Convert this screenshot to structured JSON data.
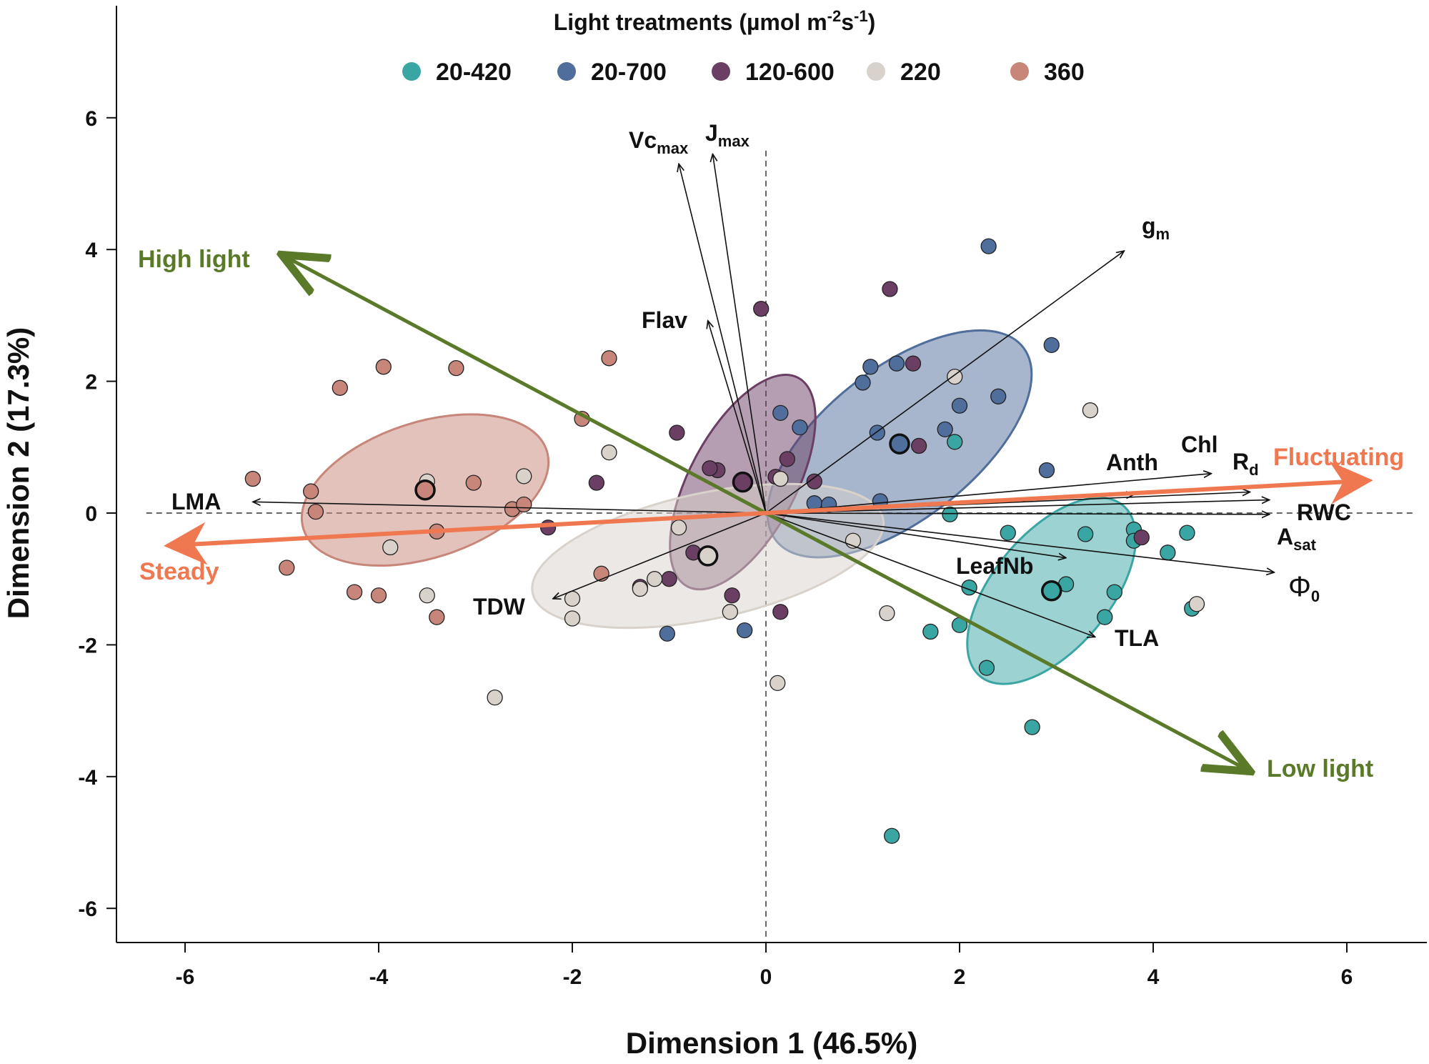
{
  "chart_data": {
    "type": "scatter",
    "subtype": "PCA biplot",
    "xlabel": "Dimension 1 (46.5%)",
    "ylabel": "Dimension 2 (17.3%)",
    "xlim": [
      -6.7,
      6.7
    ],
    "ylim": [
      -6.5,
      7.5
    ],
    "xticks": [
      -6,
      -4,
      -2,
      0,
      2,
      4,
      6
    ],
    "yticks": [
      -6,
      -4,
      -2,
      0,
      2,
      4,
      6
    ],
    "grid": false,
    "legend": {
      "title_main": "Light treatments (µmol m",
      "title_sup1": "-2",
      "title_mid": "s",
      "title_sup2": "-1",
      "title_end": ")",
      "placement": "top-center"
    },
    "series": [
      {
        "name": "20-420",
        "color": "#3aa6a4",
        "centroid": [
          2.95,
          -1.18
        ],
        "ellipse": {
          "rx": 1.15,
          "ry": 0.6,
          "angle": 50
        },
        "points": [
          [
            3.1,
            -1.08
          ],
          [
            2.1,
            -1.13
          ],
          [
            1.7,
            -1.8
          ],
          [
            2.0,
            -1.7
          ],
          [
            2.28,
            -2.35
          ],
          [
            2.75,
            -3.25
          ],
          [
            1.3,
            -4.9
          ],
          [
            3.3,
            -0.32
          ],
          [
            3.6,
            -1.2
          ],
          [
            3.8,
            -0.25
          ],
          [
            3.8,
            -0.42
          ],
          [
            4.15,
            -0.6
          ],
          [
            4.35,
            -0.3
          ],
          [
            4.4,
            -1.45
          ],
          [
            3.5,
            -1.58
          ],
          [
            2.5,
            -0.3
          ],
          [
            1.95,
            1.08
          ],
          [
            1.9,
            -0.02
          ]
        ]
      },
      {
        "name": "20-700",
        "color": "#4f6e9c",
        "centroid": [
          1.38,
          1.05
        ],
        "ellipse": {
          "rx": 1.62,
          "ry": 0.78,
          "angle": 38
        },
        "points": [
          [
            2.3,
            4.05
          ],
          [
            2.95,
            2.55
          ],
          [
            1.08,
            2.22
          ],
          [
            1.35,
            2.27
          ],
          [
            1.0,
            1.98
          ],
          [
            2.4,
            1.77
          ],
          [
            0.15,
            1.52
          ],
          [
            0.35,
            1.3
          ],
          [
            1.15,
            1.22
          ],
          [
            1.85,
            1.27
          ],
          [
            2.0,
            1.63
          ],
          [
            2.9,
            0.65
          ],
          [
            0.5,
            0.15
          ],
          [
            0.65,
            0.13
          ],
          [
            1.18,
            0.18
          ],
          [
            -1.02,
            -1.83
          ],
          [
            -0.22,
            -1.78
          ]
        ]
      },
      {
        "name": "120-600",
        "color": "#6b3e63",
        "centroid": [
          -0.24,
          0.47
        ],
        "ellipse": {
          "rx": 1.22,
          "ry": 0.55,
          "angle": 62
        },
        "points": [
          [
            1.28,
            3.4
          ],
          [
            -0.05,
            3.1
          ],
          [
            1.52,
            2.27
          ],
          [
            1.58,
            1.02
          ],
          [
            -0.92,
            1.22
          ],
          [
            0.22,
            0.82
          ],
          [
            0.1,
            0.55
          ],
          [
            -0.5,
            0.65
          ],
          [
            -0.58,
            0.68
          ],
          [
            -1.75,
            0.46
          ],
          [
            0.5,
            0.48
          ],
          [
            -2.25,
            -0.22
          ],
          [
            -0.75,
            -0.6
          ],
          [
            -1.0,
            -1.0
          ],
          [
            -1.3,
            -1.12
          ],
          [
            -0.35,
            -1.25
          ],
          [
            0.15,
            -1.5
          ],
          [
            3.88,
            -0.37
          ]
        ]
      },
      {
        "name": "220",
        "color": "#d9d2cb",
        "centroid": [
          -0.6,
          -0.65
        ],
        "ellipse": {
          "rx": 1.85,
          "ry": 0.65,
          "angle": 12
        },
        "points": [
          [
            1.95,
            2.07
          ],
          [
            3.35,
            1.56
          ],
          [
            -1.62,
            0.92
          ],
          [
            -2.5,
            0.56
          ],
          [
            0.15,
            0.52
          ],
          [
            -3.5,
            0.48
          ],
          [
            -3.88,
            -0.52
          ],
          [
            -0.9,
            -0.22
          ],
          [
            -1.15,
            -1.0
          ],
          [
            -1.3,
            -1.15
          ],
          [
            -2.0,
            -1.3
          ],
          [
            -2.0,
            -1.6
          ],
          [
            -3.5,
            -1.25
          ],
          [
            -0.37,
            -1.5
          ],
          [
            0.9,
            -0.42
          ],
          [
            1.25,
            -1.52
          ],
          [
            0.12,
            -2.58
          ],
          [
            -2.8,
            -2.8
          ],
          [
            4.45,
            -1.38
          ]
        ]
      },
      {
        "name": "360",
        "color": "#c8867a",
        "centroid": [
          -3.52,
          0.35
        ],
        "ellipse": {
          "rx": 1.32,
          "ry": 0.7,
          "angle": 18
        },
        "points": [
          [
            -3.95,
            2.22
          ],
          [
            -3.2,
            2.2
          ],
          [
            -4.4,
            1.9
          ],
          [
            -1.62,
            2.35
          ],
          [
            -1.9,
            1.43
          ],
          [
            -5.3,
            0.52
          ],
          [
            -4.7,
            0.33
          ],
          [
            -3.02,
            0.46
          ],
          [
            -4.65,
            0.02
          ],
          [
            -2.62,
            0.06
          ],
          [
            -2.5,
            0.13
          ],
          [
            -3.4,
            -0.28
          ],
          [
            -4.95,
            -0.83
          ],
          [
            -4.25,
            -1.2
          ],
          [
            -4.0,
            -1.25
          ],
          [
            -3.4,
            -1.58
          ],
          [
            -1.7,
            -0.92
          ]
        ]
      }
    ],
    "variables": [
      {
        "name": "Vc",
        "sub": "max",
        "x": -0.9,
        "y": 5.3
      },
      {
        "name": "J",
        "sub": "max",
        "x": -0.55,
        "y": 5.45
      },
      {
        "name": "g",
        "sub": "m",
        "x": 3.7,
        "y": 3.98
      },
      {
        "name": "Flav",
        "sub": "",
        "x": -0.6,
        "y": 2.92
      },
      {
        "name": "Anth",
        "sub": "",
        "x": 3.8,
        "y": 0.28
      },
      {
        "name": "Chl",
        "sub": "",
        "x": 4.6,
        "y": 0.6
      },
      {
        "name": "R",
        "sub": "d",
        "x": 5.0,
        "y": 0.32
      },
      {
        "name": "RWC",
        "sub": "",
        "x": 5.2,
        "y": 0.2
      },
      {
        "name": "A",
        "sub": "sat",
        "x": 5.2,
        "y": -0.02
      },
      {
        "name": "Φ",
        "sub": "0",
        "x": 5.25,
        "y": -0.9
      },
      {
        "name": "LeafNb",
        "sub": "",
        "x": 3.1,
        "y": -0.68
      },
      {
        "name": "TLA",
        "sub": "",
        "x": 3.4,
        "y": -1.88
      },
      {
        "name": "TDW",
        "sub": "",
        "x": -2.2,
        "y": -1.3
      },
      {
        "name": "LMA",
        "sub": "",
        "x": -5.3,
        "y": 0.17
      }
    ],
    "gradients": [
      {
        "name": "High light",
        "from": [
          0,
          0
        ],
        "to": [
          -5.0,
          3.92
        ],
        "color": "#5a7a2a"
      },
      {
        "name": "Low light",
        "from": [
          0,
          0
        ],
        "to": [
          5.0,
          -3.92
        ],
        "color": "#5a7a2a"
      },
      {
        "name": "Fluctuating",
        "from": [
          0,
          0
        ],
        "to": [
          6.05,
          0.48
        ],
        "color": "#f07850"
      },
      {
        "name": "Steady",
        "from": [
          0,
          0
        ],
        "to": [
          -6.0,
          -0.48
        ],
        "color": "#f07850"
      }
    ]
  }
}
